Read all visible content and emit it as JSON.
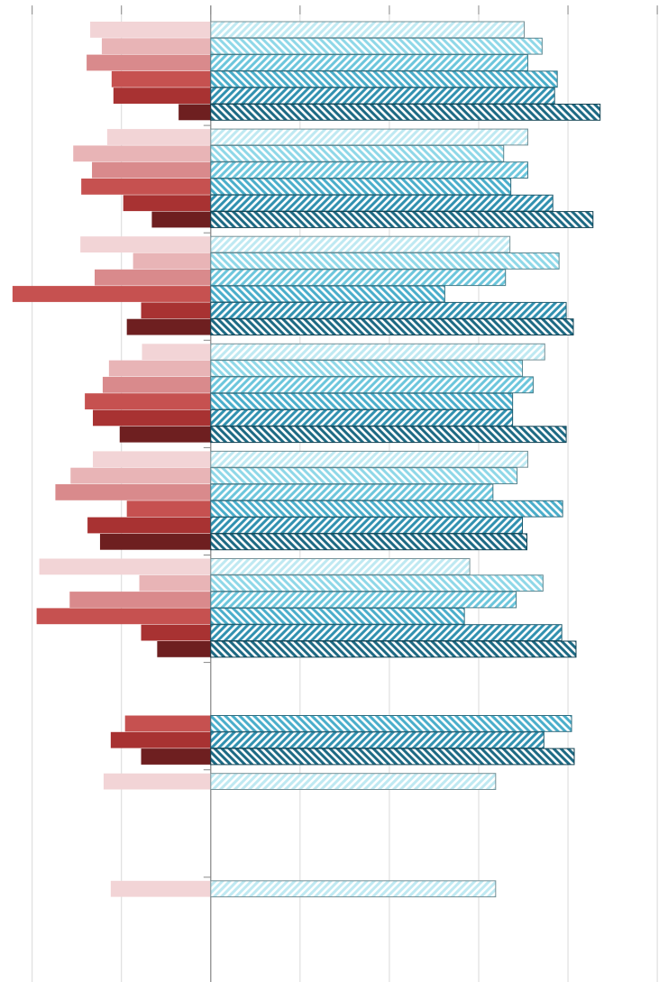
{
  "chart_data": {
    "type": "diverging-bar",
    "categories": [
      null,
      null,
      null,
      null,
      null,
      null,
      null,
      null,
      null
    ],
    "xlim": [
      -2.36,
      5.12
    ],
    "xticks": [
      -2,
      -1,
      0,
      1,
      2,
      3,
      4,
      5
    ],
    "grid": true,
    "series": [
      {
        "color": "#f2d4d6",
        "values": [
          -1.35,
          -1.16,
          -1.46,
          -0.77,
          -1.32,
          -1.92,
          null,
          -1.2,
          -1.12
        ]
      },
      {
        "color": "#e8b4b6",
        "values": [
          -1.22,
          -1.54,
          -0.87,
          -1.14,
          -1.57,
          -0.8,
          null,
          null,
          null
        ]
      },
      {
        "color": "#d98a8c",
        "values": [
          -1.39,
          -1.33,
          -1.3,
          -1.21,
          -1.74,
          -1.58,
          null,
          null,
          null
        ]
      },
      {
        "color": "#c65150",
        "values": [
          -1.11,
          -1.45,
          -2.22,
          -1.41,
          -0.94,
          -1.95,
          -0.96,
          null,
          null
        ]
      },
      {
        "color": "#a83232",
        "values": [
          -1.09,
          -0.98,
          -0.78,
          -1.32,
          -1.38,
          -0.78,
          -1.12,
          null,
          null
        ]
      },
      {
        "color": "#6e1f20",
        "values": [
          -0.36,
          -0.66,
          -0.94,
          -1.02,
          -1.24,
          -0.6,
          -0.78,
          null,
          null
        ]
      },
      {
        "color": "#bfe9f2",
        "hatch": "/",
        "values": [
          3.51,
          3.55,
          3.35,
          3.74,
          3.55,
          2.9,
          null,
          3.19,
          3.19
        ]
      },
      {
        "color": "#8fd8e8",
        "hatch": "\\",
        "values": [
          3.71,
          3.28,
          3.9,
          3.49,
          3.43,
          3.72,
          null,
          null,
          null
        ]
      },
      {
        "color": "#6cc6dc",
        "hatch": "/",
        "values": [
          3.55,
          3.55,
          3.3,
          3.61,
          3.16,
          3.42,
          null,
          null,
          null
        ]
      },
      {
        "color": "#4aaecb",
        "hatch": "\\",
        "values": [
          3.88,
          3.36,
          2.62,
          3.38,
          3.94,
          2.84,
          4.04,
          null,
          null
        ]
      },
      {
        "color": "#3191b0",
        "hatch": "/",
        "values": [
          3.85,
          3.83,
          3.98,
          3.38,
          3.49,
          3.93,
          3.73,
          null,
          null
        ]
      },
      {
        "color": "#1d6a84",
        "hatch": "\\",
        "values": [
          4.36,
          4.28,
          4.06,
          3.98,
          3.54,
          4.09,
          4.07,
          null,
          null
        ]
      }
    ]
  }
}
